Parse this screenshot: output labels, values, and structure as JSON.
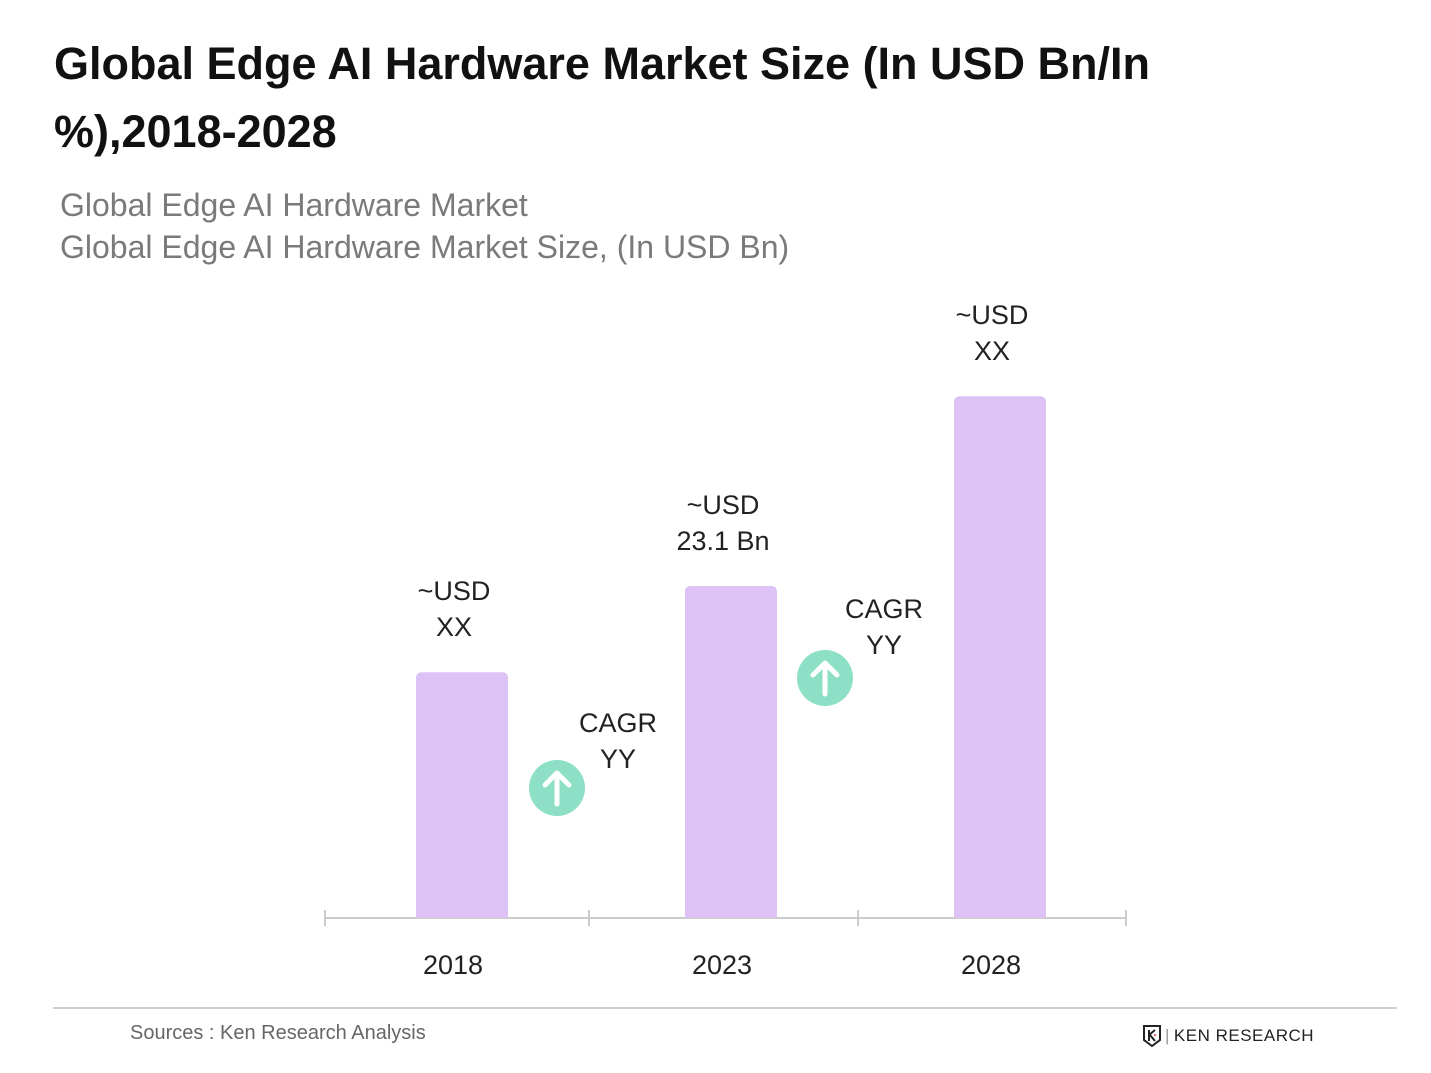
{
  "title": "Global Edge AI Hardware Market Size (In USD Bn/In %),2018-2028",
  "subtitle1": "Global Edge AI Hardware Market",
  "subtitle2": "Global Edge AI Hardware Market Size, (In USD Bn)",
  "source": "Sources : Ken Research Analysis",
  "logo_text": "KEN RESEARCH",
  "colors": {
    "bar": "#dcc2f5",
    "cagr_icon": "#8ddfc5",
    "axis": "#cccccc"
  },
  "chart_data": {
    "type": "bar",
    "categories": [
      "2018",
      "2023",
      "2028"
    ],
    "values": [
      17.1,
      23.1,
      36.3
    ],
    "data_labels": [
      [
        "~USD",
        "XX"
      ],
      [
        "~USD",
        "23.1 Bn"
      ],
      [
        "~USD",
        "XX"
      ]
    ],
    "cagr_annotations": [
      [
        "CAGR",
        "YY"
      ],
      [
        "CAGR",
        "YY"
      ]
    ],
    "xlabel": "",
    "ylabel": "",
    "ylim": [
      0,
      40
    ],
    "grid": false,
    "legend": "none"
  }
}
